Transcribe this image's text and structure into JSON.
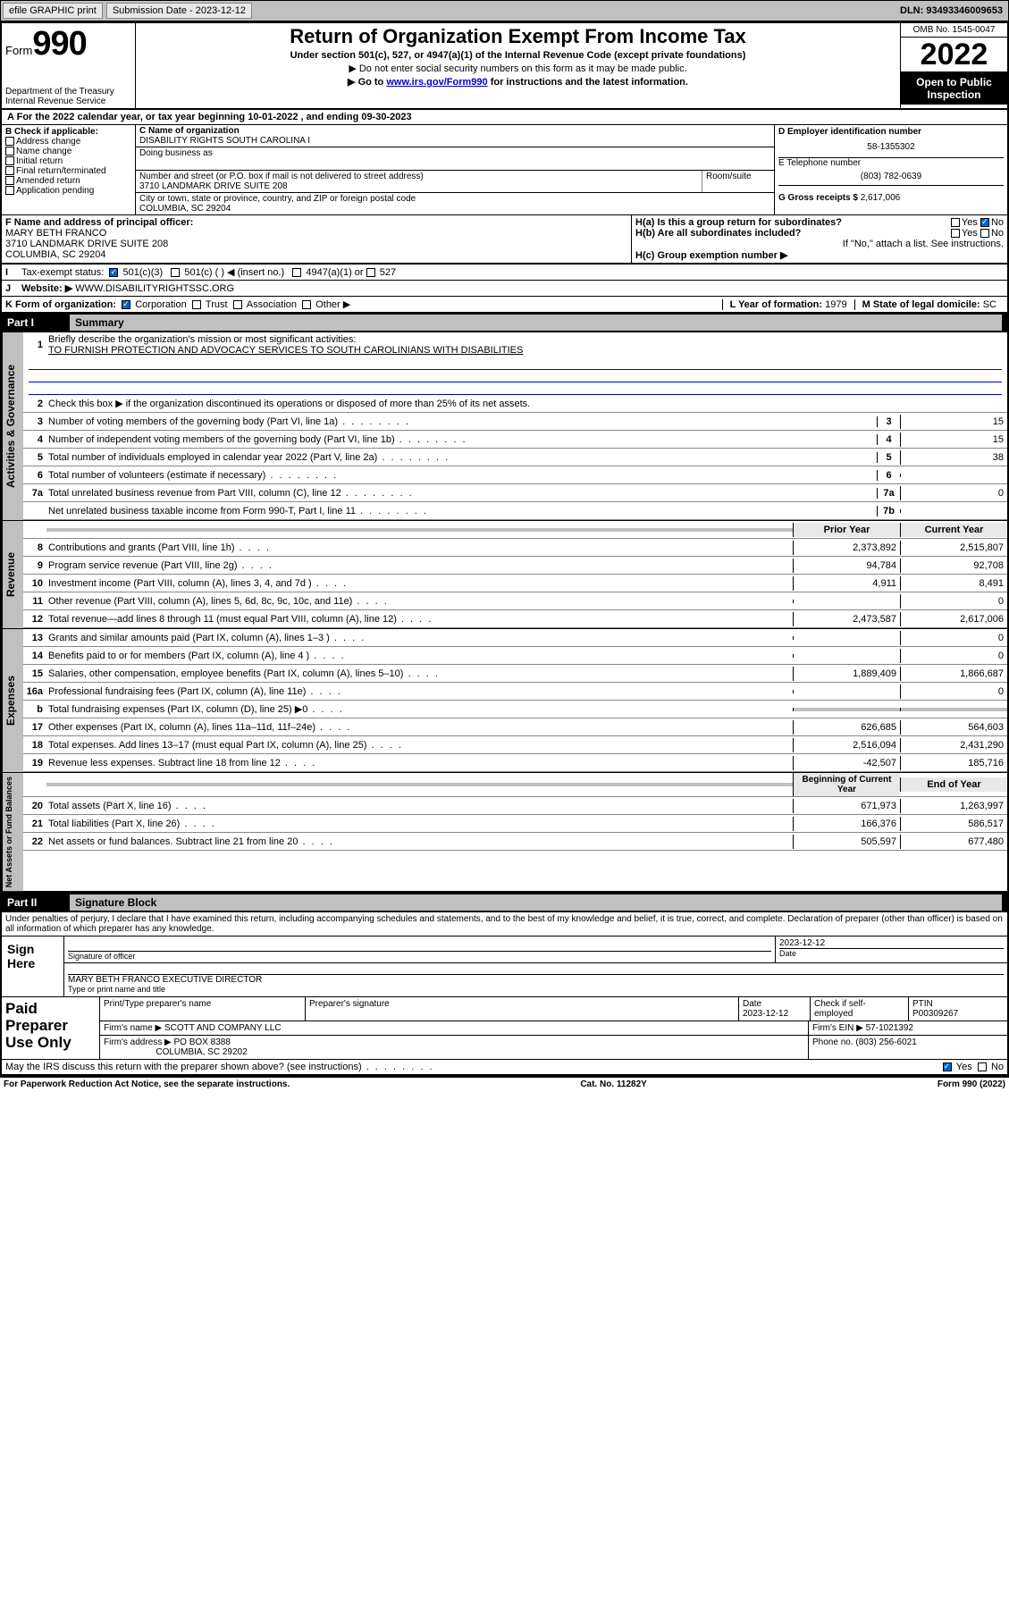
{
  "topbar": {
    "efile_label": "efile GRAPHIC print",
    "submission_label": "Submission Date - 2023-12-12",
    "dln": "DLN: 93493346009653"
  },
  "header": {
    "form_prefix": "Form",
    "form_number": "990",
    "dept": "Department of the Treasury",
    "irs": "Internal Revenue Service",
    "title": "Return of Organization Exempt From Income Tax",
    "subtitle": "Under section 501(c), 527, or 4947(a)(1) of the Internal Revenue Code (except private foundations)",
    "note1": "▶ Do not enter social security numbers on this form as it may be made public.",
    "note2_pre": "▶ Go to ",
    "note2_link": "www.irs.gov/Form990",
    "note2_post": " for instructions and the latest information.",
    "omb": "OMB No. 1545-0047",
    "year": "2022",
    "inspection": "Open to Public Inspection"
  },
  "cal_year": "For the 2022 calendar year, or tax year beginning 10-01-2022    , and ending 09-30-2023",
  "section_b": {
    "label": "B Check if applicable:",
    "opts": [
      "Address change",
      "Name change",
      "Initial return",
      "Final return/terminated",
      "Amended return",
      "Application pending"
    ]
  },
  "section_c": {
    "label": "C Name of organization",
    "org_name": "DISABILITY RIGHTS SOUTH CAROLINA I",
    "dba_label": "Doing business as",
    "addr_label": "Number and street (or P.O. box if mail is not delivered to street address)",
    "room_label": "Room/suite",
    "addr": "3710 LANDMARK DRIVE SUITE 208",
    "city_label": "City or town, state or province, country, and ZIP or foreign postal code",
    "city": "COLUMBIA, SC  29204"
  },
  "section_d": {
    "label": "D Employer identification number",
    "ein": "58-1355302",
    "tel_label": "E Telephone number",
    "tel": "(803) 782-0639",
    "gross_label": "G Gross receipts $",
    "gross": "2,617,006"
  },
  "section_f": {
    "label": "F  Name and address of principal officer:",
    "name": "MARY BETH FRANCO",
    "addr1": "3710 LANDMARK DRIVE SUITE 208",
    "addr2": "COLUMBIA, SC  29204"
  },
  "section_h": {
    "ha_label": "H(a)  Is this a group return for subordinates?",
    "hb_label": "H(b)  Are all subordinates included?",
    "hb_note": "If \"No,\" attach a list. See instructions.",
    "hc_label": "H(c)  Group exemption number ▶",
    "yes": "Yes",
    "no": "No"
  },
  "section_i": {
    "label": "I",
    "text": "Tax-exempt status:",
    "opt1": "501(c)(3)",
    "opt2": "501(c) (  ) ◀ (insert no.)",
    "opt3": "4947(a)(1) or",
    "opt4": "527"
  },
  "section_j": {
    "label": "J",
    "text": "Website: ▶",
    "url": "WWW.DISABILITYRIGHTSSC.ORG"
  },
  "section_k": {
    "label": "K Form of organization:",
    "opts": [
      "Corporation",
      "Trust",
      "Association",
      "Other ▶"
    ]
  },
  "section_l": {
    "label": "L Year of formation:",
    "val": "1979"
  },
  "section_m": {
    "label": "M State of legal domicile:",
    "val": "SC"
  },
  "part1": {
    "label": "Part I",
    "title": "Summary",
    "line1a": "Briefly describe the organization's mission or most significant activities:",
    "line1b": "TO FURNISH PROTECTION AND ADVOCACY SERVICES TO SOUTH CAROLINIANS WITH DISABILITIES",
    "line2": "Check this box ▶       if the organization discontinued its operations or disposed of more than 25% of its net assets.",
    "lines_gov": [
      {
        "n": "3",
        "d": "Number of voting members of the governing body (Part VI, line 1a)",
        "b": "3",
        "v": "15"
      },
      {
        "n": "4",
        "d": "Number of independent voting members of the governing body (Part VI, line 1b)",
        "b": "4",
        "v": "15"
      },
      {
        "n": "5",
        "d": "Total number of individuals employed in calendar year 2022 (Part V, line 2a)",
        "b": "5",
        "v": "38"
      },
      {
        "n": "6",
        "d": "Total number of volunteers (estimate if necessary)",
        "b": "6",
        "v": ""
      },
      {
        "n": "7a",
        "d": "Total unrelated business revenue from Part VIII, column (C), line 12",
        "b": "7a",
        "v": "0"
      },
      {
        "n": "",
        "d": "Net unrelated business taxable income from Form 990-T, Part I, line 11",
        "b": "7b",
        "v": ""
      }
    ],
    "hdr_prior": "Prior Year",
    "hdr_current": "Current Year",
    "lines_rev": [
      {
        "n": "8",
        "d": "Contributions and grants (Part VIII, line 1h)",
        "p": "2,373,892",
        "c": "2,515,807"
      },
      {
        "n": "9",
        "d": "Program service revenue (Part VIII, line 2g)",
        "p": "94,784",
        "c": "92,708"
      },
      {
        "n": "10",
        "d": "Investment income (Part VIII, column (A), lines 3, 4, and 7d )",
        "p": "4,911",
        "c": "8,491"
      },
      {
        "n": "11",
        "d": "Other revenue (Part VIII, column (A), lines 5, 6d, 8c, 9c, 10c, and 11e)",
        "p": "",
        "c": "0"
      },
      {
        "n": "12",
        "d": "Total revenue—add lines 8 through 11 (must equal Part VIII, column (A), line 12)",
        "p": "2,473,587",
        "c": "2,617,006"
      }
    ],
    "lines_exp": [
      {
        "n": "13",
        "d": "Grants and similar amounts paid (Part IX, column (A), lines 1–3 )",
        "p": "",
        "c": "0"
      },
      {
        "n": "14",
        "d": "Benefits paid to or for members (Part IX, column (A), line 4 )",
        "p": "",
        "c": "0"
      },
      {
        "n": "15",
        "d": "Salaries, other compensation, employee benefits (Part IX, column (A), lines 5–10)",
        "p": "1,889,409",
        "c": "1,866,687"
      },
      {
        "n": "16a",
        "d": "Professional fundraising fees (Part IX, column (A), line 11e)",
        "p": "",
        "c": "0"
      },
      {
        "n": "b",
        "d": "Total fundraising expenses (Part IX, column (D), line 25) ▶0",
        "p": "grey",
        "c": "grey"
      },
      {
        "n": "17",
        "d": "Other expenses (Part IX, column (A), lines 11a–11d, 11f–24e)",
        "p": "626,685",
        "c": "564,603"
      },
      {
        "n": "18",
        "d": "Total expenses. Add lines 13–17 (must equal Part IX, column (A), line 25)",
        "p": "2,516,094",
        "c": "2,431,290"
      },
      {
        "n": "19",
        "d": "Revenue less expenses. Subtract line 18 from line 12",
        "p": "-42,507",
        "c": "185,716"
      }
    ],
    "hdr_begin": "Beginning of Current Year",
    "hdr_end": "End of Year",
    "lines_net": [
      {
        "n": "20",
        "d": "Total assets (Part X, line 16)",
        "p": "671,973",
        "c": "1,263,997"
      },
      {
        "n": "21",
        "d": "Total liabilities (Part X, line 26)",
        "p": "166,376",
        "c": "586,517"
      },
      {
        "n": "22",
        "d": "Net assets or fund balances. Subtract line 21 from line 20",
        "p": "505,597",
        "c": "677,480"
      }
    ],
    "vtab_gov": "Activities & Governance",
    "vtab_rev": "Revenue",
    "vtab_exp": "Expenses",
    "vtab_net": "Net Assets or Fund Balances"
  },
  "part2": {
    "label": "Part II",
    "title": "Signature Block",
    "decl": "Under penalties of perjury, I declare that I have examined this return, including accompanying schedules and statements, and to the best of my knowledge and belief, it is true, correct, and complete. Declaration of preparer (other than officer) is based on all information of which preparer has any knowledge.",
    "sign_here": "Sign Here",
    "sig_officer": "Signature of officer",
    "date": "Date",
    "date_val": "2023-12-12",
    "officer_name": "MARY BETH FRANCO  EXECUTIVE DIRECTOR",
    "officer_sub": "Type or print name and title",
    "paid": "Paid Preparer Use Only",
    "prep_name_label": "Print/Type preparer's name",
    "prep_sig_label": "Preparer's signature",
    "prep_date_label": "Date",
    "prep_date": "2023-12-12",
    "check_self": "Check        if self-employed",
    "ptin_label": "PTIN",
    "ptin": "P00309267",
    "firm_name_label": "Firm's name     ▶",
    "firm_name": "SCOTT AND COMPANY LLC",
    "firm_ein_label": "Firm's EIN ▶",
    "firm_ein": "57-1021392",
    "firm_addr_label": "Firm's address ▶",
    "firm_addr1": "PO BOX 8388",
    "firm_addr2": "COLUMBIA, SC  29202",
    "phone_label": "Phone no.",
    "phone": "(803) 256-6021",
    "discuss": "May the IRS discuss this return with the preparer shown above? (see instructions)",
    "yes": "Yes",
    "no": "No"
  },
  "footer": {
    "left": "For Paperwork Reduction Act Notice, see the separate instructions.",
    "mid": "Cat. No. 11282Y",
    "right": "Form 990 (2022)"
  }
}
